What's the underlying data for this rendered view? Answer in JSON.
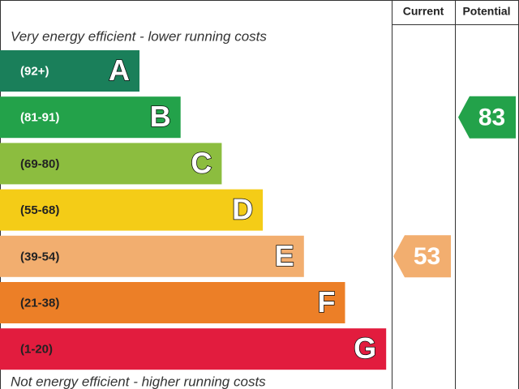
{
  "header": {
    "current": "Current",
    "potential": "Potential"
  },
  "top_note": "Very energy efficient - lower running costs",
  "bottom_note": "Not energy efficient - higher running costs",
  "bands": [
    {
      "range": "(92+)",
      "letter": "A",
      "color": "#1a7f5a",
      "text_color": "#ffffff"
    },
    {
      "range": "(81-91)",
      "letter": "B",
      "color": "#23a24a",
      "text_color": "#ffffff"
    },
    {
      "range": "(69-80)",
      "letter": "C",
      "color": "#8cbd3f",
      "text_color": "#222222"
    },
    {
      "range": "(55-68)",
      "letter": "D",
      "color": "#f4cc17",
      "text_color": "#222222"
    },
    {
      "range": "(39-54)",
      "letter": "E",
      "color": "#f2ae6f",
      "text_color": "#222222"
    },
    {
      "range": "(21-38)",
      "letter": "F",
      "color": "#ec7f27",
      "text_color": "#222222"
    },
    {
      "range": "(1-20)",
      "letter": "G",
      "color": "#e21c3e",
      "text_color": "#222222"
    }
  ],
  "ratings": {
    "current": 53,
    "potential": 83
  }
}
